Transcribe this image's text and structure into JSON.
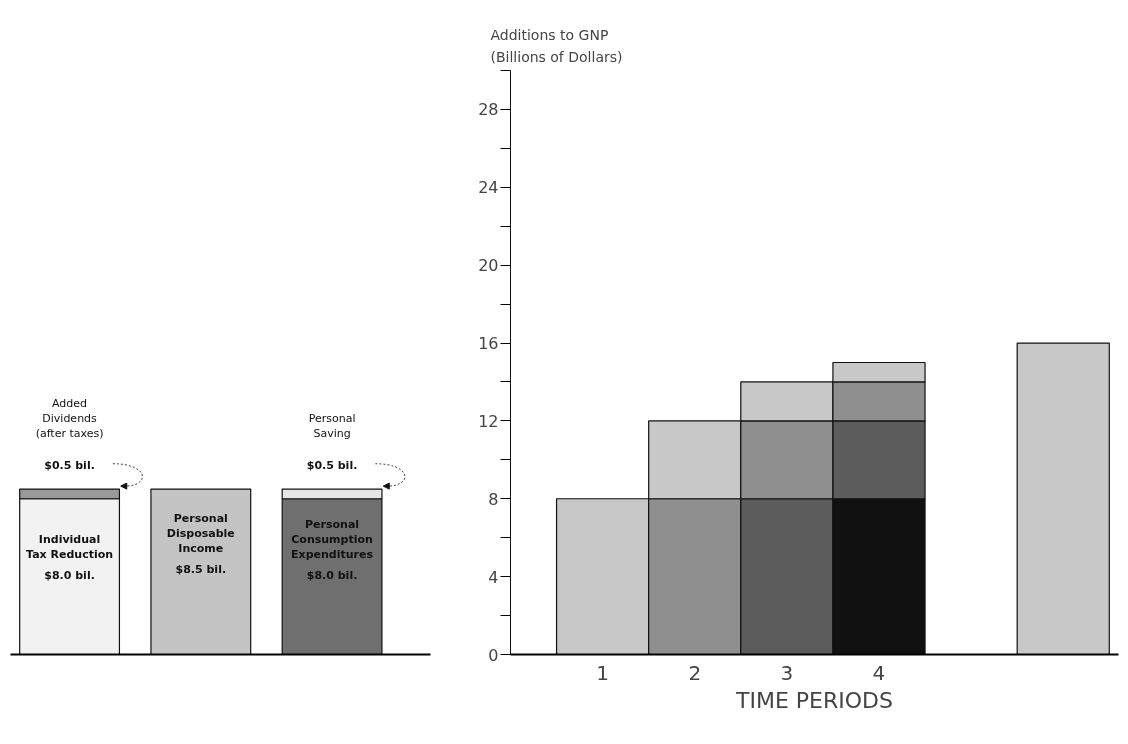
{
  "chart_data": [
    {
      "type": "bar",
      "stacked": true,
      "tick_labels": false,
      "categories": [
        "Individual Tax Reduction",
        "Personal Disposable Income",
        "Personal Consumption Expenditures"
      ],
      "series": [
        {
          "values": [
            8.0,
            8.5,
            8.0
          ],
          "colors": [
            "#f2f2f2",
            "#c4c4c4",
            "#6f6f6f"
          ],
          "value_labels": [
            "$8.0 bil.",
            "$8.5 bil.",
            "$8.0 bil."
          ]
        },
        {
          "values": [
            0.5,
            null,
            0.5
          ],
          "colors": [
            "#9a9a9a",
            "#c4c4c4",
            "#e6e6e6"
          ],
          "value_labels": [
            "$0.5 bil.",
            null,
            "$0.5 bil."
          ]
        }
      ],
      "annotations": [
        "Added Dividends (after taxes)",
        "Personal Saving"
      ]
    },
    {
      "type": "bar",
      "stacked": true,
      "ylabel": "Additions to GNP (Billions of Dollars)",
      "xlabel": "TIME PERIODS",
      "categories": [
        "1",
        "2",
        "3",
        "4",
        null,
        null
      ],
      "ylim": [
        0,
        30
      ],
      "yticks": [
        0,
        {
          "value": 2,
          "label": null
        },
        4,
        {
          "value": 6,
          "label": null
        },
        8,
        {
          "value": 10,
          "label": null
        },
        12,
        {
          "value": 14,
          "label": null
        },
        16,
        {
          "value": 18,
          "label": null
        },
        20,
        {
          "value": 22,
          "label": null
        },
        24,
        {
          "value": 26,
          "label": null
        },
        28,
        {
          "value": 30,
          "label": null
        }
      ],
      "series": [
        {
          "values": [
            8,
            8,
            8,
            8,
            null,
            16
          ],
          "colors": [
            "#c8c8c8",
            "#8f8f8f",
            "#5c5c5c",
            "#111111",
            "#c8c8c8",
            "#c8c8c8"
          ]
        },
        {
          "values": [
            null,
            4,
            4,
            4,
            null,
            null
          ],
          "colors": [
            "#c8c8c8",
            "#c8c8c8",
            "#8f8f8f",
            "#5c5c5c",
            "#c8c8c8",
            "#c8c8c8"
          ]
        },
        {
          "values": [
            null,
            null,
            2,
            2,
            null,
            null
          ],
          "colors": [
            "#c8c8c8",
            "#c8c8c8",
            "#c8c8c8",
            "#8f8f8f",
            "#c8c8c8",
            "#c8c8c8"
          ]
        },
        {
          "values": [
            null,
            null,
            null,
            1,
            null,
            null
          ],
          "colors": [
            "#c8c8c8",
            "#c8c8c8",
            "#c8c8c8",
            "#c8c8c8",
            "#c8c8c8",
            "#c8c8c8"
          ]
        }
      ]
    }
  ]
}
